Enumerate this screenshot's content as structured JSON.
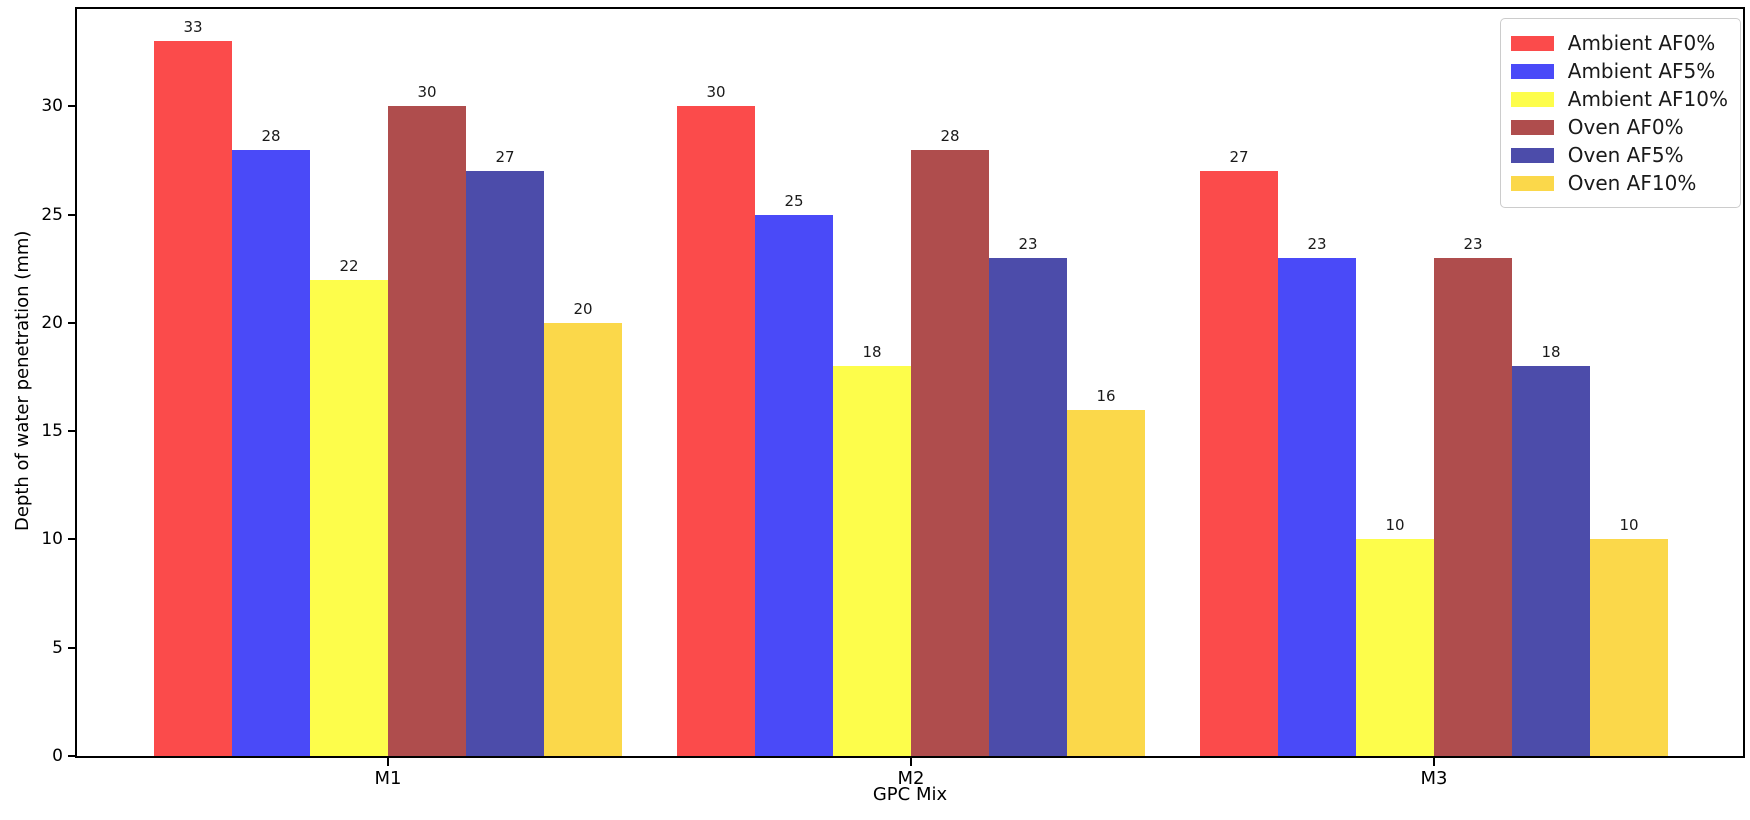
{
  "chart_data": {
    "type": "bar",
    "title": "",
    "xlabel": "GPC Mix",
    "ylabel": "Depth of water penetration (mm)",
    "categories": [
      "M1",
      "M2",
      "M3"
    ],
    "series": [
      {
        "name": "Ambient AF0%",
        "color": "#FB4B4B",
        "values": [
          33,
          30,
          27
        ]
      },
      {
        "name": "Ambient AF5%",
        "color": "#4A4AF8",
        "values": [
          28,
          25,
          23
        ]
      },
      {
        "name": "Ambient AF10%",
        "color": "#FDFD4B",
        "values": [
          22,
          18,
          10
        ]
      },
      {
        "name": "Oven AF0%",
        "color": "#AF4D4D",
        "values": [
          30,
          28,
          23
        ]
      },
      {
        "name": "Oven AF5%",
        "color": "#4C4CAA",
        "values": [
          27,
          23,
          18
        ]
      },
      {
        "name": "Oven AF10%",
        "color": "#FBD84A",
        "values": [
          20,
          16,
          10
        ]
      }
    ],
    "yticks": [
      0,
      5,
      10,
      15,
      20,
      25,
      30
    ],
    "ylim": [
      0,
      34.5
    ],
    "bar_value_labels": true,
    "legend_position": "upper right",
    "grid": false,
    "background_color": "#ffffff",
    "spine_color": "#000000"
  }
}
